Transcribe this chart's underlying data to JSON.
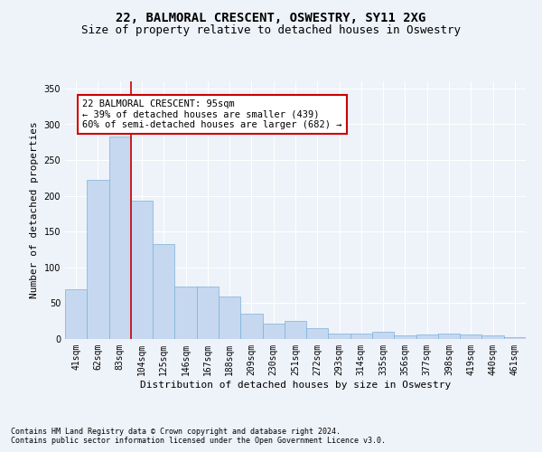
{
  "title": "22, BALMORAL CRESCENT, OSWESTRY, SY11 2XG",
  "subtitle": "Size of property relative to detached houses in Oswestry",
  "xlabel": "Distribution of detached houses by size in Oswestry",
  "ylabel": "Number of detached properties",
  "categories": [
    "41sqm",
    "62sqm",
    "83sqm",
    "104sqm",
    "125sqm",
    "146sqm",
    "167sqm",
    "188sqm",
    "209sqm",
    "230sqm",
    "251sqm",
    "272sqm",
    "293sqm",
    "314sqm",
    "335sqm",
    "356sqm",
    "377sqm",
    "398sqm",
    "419sqm",
    "440sqm",
    "461sqm"
  ],
  "values": [
    70,
    222,
    283,
    193,
    133,
    73,
    73,
    60,
    35,
    22,
    25,
    15,
    7,
    8,
    10,
    5,
    6,
    8,
    6,
    5,
    3
  ],
  "bar_color": "#c5d8f0",
  "bar_edge_color": "#7ab3d8",
  "property_line_x": 2.5,
  "property_line_color": "#cc0000",
  "annotation_text": "22 BALMORAL CRESCENT: 95sqm\n← 39% of detached houses are smaller (439)\n60% of semi-detached houses are larger (682) →",
  "annotation_box_color": "#ffffff",
  "annotation_box_edge": "#cc0000",
  "footer_line1": "Contains HM Land Registry data © Crown copyright and database right 2024.",
  "footer_line2": "Contains public sector information licensed under the Open Government Licence v3.0.",
  "ylim": [
    0,
    360
  ],
  "yticks": [
    0,
    50,
    100,
    150,
    200,
    250,
    300,
    350
  ],
  "background_color": "#eef2f9",
  "grid_color": "#ffffff",
  "title_fontsize": 10,
  "subtitle_fontsize": 9,
  "axis_label_fontsize": 8,
  "tick_fontsize": 7,
  "annotation_fontsize": 7.5,
  "footer_fontsize": 6
}
